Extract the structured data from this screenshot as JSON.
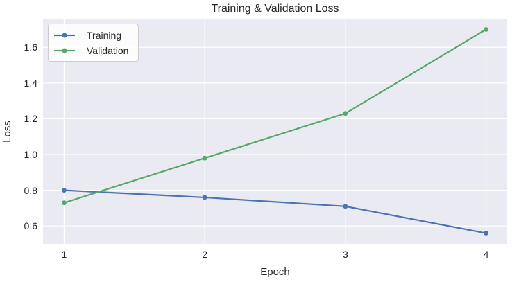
{
  "chart_data": {
    "type": "line",
    "title": "Training & Validation Loss",
    "xlabel": "Epoch",
    "ylabel": "Loss",
    "x": [
      1,
      2,
      3,
      4
    ],
    "series": [
      {
        "name": "Training",
        "color": "#4C72B0",
        "values": [
          0.8,
          0.76,
          0.71,
          0.56
        ]
      },
      {
        "name": "Validation",
        "color": "#55A868",
        "values": [
          0.73,
          0.98,
          1.23,
          1.7
        ]
      }
    ],
    "xlim": [
      0.85,
      4.15
    ],
    "ylim": [
      0.5,
      1.76
    ],
    "xticks": [
      1,
      2,
      3,
      4
    ],
    "xtick_labels": [
      "1",
      "2",
      "3",
      "4"
    ],
    "yticks": [
      0.6,
      0.8,
      1.0,
      1.2,
      1.4,
      1.6
    ],
    "ytick_labels": [
      "0.6",
      "0.8",
      "1.0",
      "1.2",
      "1.4",
      "1.6"
    ],
    "grid": true,
    "legend_position": "upper left",
    "colors": {
      "plot_background": "#EAEAF2",
      "grid": "#FFFFFF",
      "text": "#262626",
      "legend_border": "#CCCCCC"
    }
  }
}
